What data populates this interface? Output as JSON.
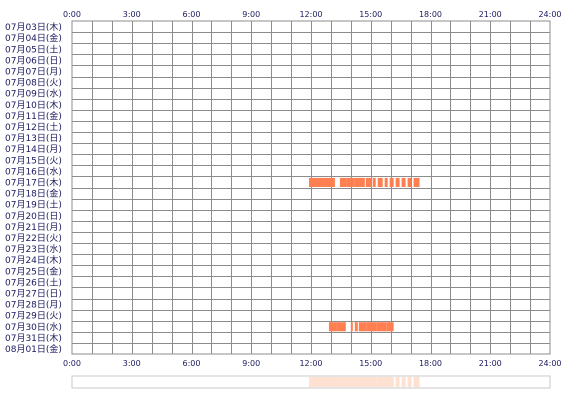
{
  "chart_data": {
    "type": "timeline",
    "title": "",
    "xlabel": "",
    "ylabel": "",
    "x_range_hours": [
      0,
      24
    ],
    "x_ticks": [
      "0:00",
      "3:00",
      "6:00",
      "9:00",
      "12:00",
      "15:00",
      "18:00",
      "21:00",
      "24:00"
    ],
    "days": [
      "07月03日(木)",
      "07月04日(金)",
      "07月05日(土)",
      "07月06日(日)",
      "07月07日(月)",
      "07月08日(火)",
      "07月09日(水)",
      "07月10日(木)",
      "07月11日(金)",
      "07月12日(土)",
      "07月13日(日)",
      "07月14日(月)",
      "07月15日(火)",
      "07月16日(水)",
      "07月17日(木)",
      "07月18日(金)",
      "07月19日(土)",
      "07月20日(日)",
      "07月21日(月)",
      "07月22日(火)",
      "07月23日(水)",
      "07月24日(木)",
      "07月25日(金)",
      "07月26日(土)",
      "07月27日(日)",
      "07月28日(月)",
      "07月29日(火)",
      "07月30日(水)",
      "07月31日(木)",
      "08月01日(金)"
    ],
    "activity": [
      {
        "day_index": 14,
        "segments": [
          [
            11.9,
            12.3
          ],
          [
            12.3,
            12.7
          ],
          [
            12.7,
            13.2
          ],
          [
            13.45,
            13.8
          ],
          [
            13.8,
            14.2
          ],
          [
            14.2,
            14.7
          ],
          [
            14.75,
            15.05
          ],
          [
            15.1,
            15.25
          ],
          [
            15.35,
            15.6
          ],
          [
            15.7,
            15.85
          ],
          [
            15.95,
            16.15
          ],
          [
            16.25,
            16.45
          ],
          [
            16.55,
            16.75
          ],
          [
            16.85,
            17.05
          ],
          [
            17.15,
            17.45
          ]
        ]
      },
      {
        "day_index": 27,
        "segments": [
          [
            12.9,
            13.3
          ],
          [
            13.3,
            13.75
          ],
          [
            14.0,
            14.1
          ],
          [
            14.2,
            14.35
          ],
          [
            14.4,
            14.8
          ],
          [
            14.8,
            15.3
          ],
          [
            15.3,
            15.8
          ],
          [
            15.8,
            16.15
          ]
        ]
      }
    ],
    "summary_bar": {
      "range_hours": [
        11.9,
        17.45
      ]
    },
    "colors": {
      "grid": "#8c8c8c",
      "activity": "#ff7f50",
      "summary": "#ffe1d2",
      "text": "#1a1a5e"
    }
  }
}
